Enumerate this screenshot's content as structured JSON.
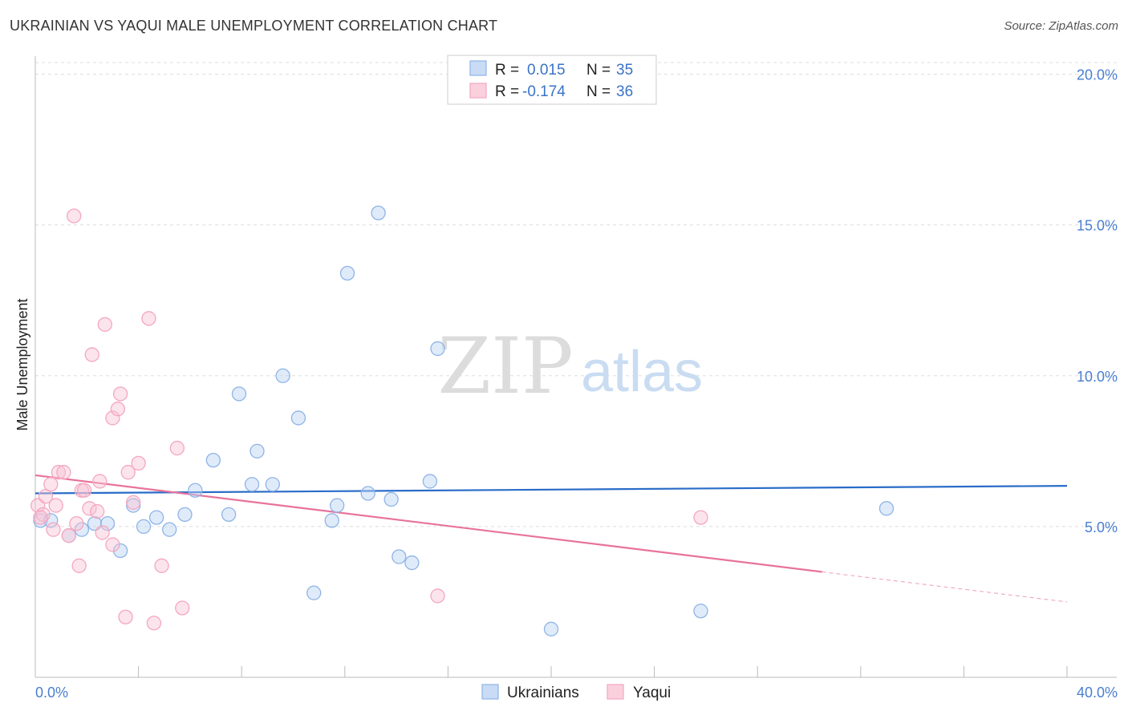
{
  "title": "UKRAINIAN VS YAQUI MALE UNEMPLOYMENT CORRELATION CHART",
  "source": "Source: ZipAtlas.com",
  "watermark": {
    "zip": "ZIP",
    "atlas": "atlas"
  },
  "chart_data": {
    "type": "scatter",
    "title": "UKRAINIAN VS YAQUI MALE UNEMPLOYMENT CORRELATION CHART",
    "xlabel": "",
    "ylabel": "Male Unemployment",
    "xlim": [
      0,
      40
    ],
    "ylim": [
      0,
      20.6
    ],
    "x_tick_labels": [
      "0.0%",
      "40.0%"
    ],
    "y_ticks": [
      5,
      10,
      15,
      20
    ],
    "y_tick_labels": [
      "5.0%",
      "10.0%",
      "15.0%",
      "20.0%"
    ],
    "grid": true,
    "legend_top": [
      {
        "r_label": "R =",
        "r_value": "0.015",
        "n_label": "N =",
        "n_value": "35"
      },
      {
        "r_label": "R =",
        "r_value": "-0.174",
        "n_label": "N =",
        "n_value": "36"
      }
    ],
    "series": [
      {
        "name": "Ukrainians",
        "color": "#8fb4e6",
        "line_color": "#2a6cc8",
        "trend": {
          "x0": 0,
          "y0": 6.1,
          "x1": 40,
          "y1": 6.35,
          "solid_until": 40
        },
        "points": [
          [
            0.2,
            5.2
          ],
          [
            0.6,
            5.2
          ],
          [
            1.3,
            4.7
          ],
          [
            1.8,
            4.9
          ],
          [
            2.3,
            5.1
          ],
          [
            2.8,
            5.1
          ],
          [
            3.3,
            4.2
          ],
          [
            3.8,
            5.7
          ],
          [
            4.2,
            5.0
          ],
          [
            4.7,
            5.3
          ],
          [
            5.2,
            4.9
          ],
          [
            5.8,
            5.4
          ],
          [
            6.2,
            6.2
          ],
          [
            6.9,
            7.2
          ],
          [
            7.5,
            5.4
          ],
          [
            7.9,
            9.4
          ],
          [
            8.4,
            6.4
          ],
          [
            8.6,
            7.5
          ],
          [
            9.2,
            6.4
          ],
          [
            9.6,
            10.0
          ],
          [
            10.2,
            8.6
          ],
          [
            10.8,
            2.8
          ],
          [
            11.5,
            5.2
          ],
          [
            11.7,
            5.7
          ],
          [
            12.1,
            13.4
          ],
          [
            12.9,
            6.1
          ],
          [
            13.3,
            15.4
          ],
          [
            13.8,
            5.9
          ],
          [
            14.1,
            4.0
          ],
          [
            14.6,
            3.8
          ],
          [
            15.3,
            6.5
          ],
          [
            15.6,
            10.9
          ],
          [
            20.0,
            1.6
          ],
          [
            25.8,
            2.2
          ],
          [
            33.0,
            5.6
          ]
        ]
      },
      {
        "name": "Yaqui",
        "color": "#f4a7c0",
        "line_color": "#e8729c",
        "trend": {
          "x0": 0,
          "y0": 6.7,
          "x1": 40,
          "y1": 2.5,
          "solid_until": 30.5
        },
        "points": [
          [
            0.1,
            5.7
          ],
          [
            0.3,
            5.4
          ],
          [
            0.4,
            6.0
          ],
          [
            0.6,
            6.4
          ],
          [
            0.7,
            4.9
          ],
          [
            0.8,
            5.7
          ],
          [
            0.9,
            6.8
          ],
          [
            1.1,
            6.8
          ],
          [
            1.3,
            4.7
          ],
          [
            1.6,
            5.1
          ],
          [
            1.5,
            15.3
          ],
          [
            1.7,
            3.7
          ],
          [
            1.8,
            6.2
          ],
          [
            1.9,
            6.2
          ],
          [
            2.1,
            5.6
          ],
          [
            2.2,
            10.7
          ],
          [
            2.4,
            5.5
          ],
          [
            2.5,
            6.5
          ],
          [
            2.6,
            4.8
          ],
          [
            2.7,
            11.7
          ],
          [
            3.0,
            4.4
          ],
          [
            3.0,
            8.6
          ],
          [
            3.2,
            8.9
          ],
          [
            3.3,
            9.4
          ],
          [
            3.5,
            2.0
          ],
          [
            3.6,
            6.8
          ],
          [
            3.8,
            5.8
          ],
          [
            4.0,
            7.1
          ],
          [
            4.4,
            11.9
          ],
          [
            4.6,
            1.8
          ],
          [
            4.9,
            3.7
          ],
          [
            5.5,
            7.6
          ],
          [
            5.7,
            2.3
          ],
          [
            15.6,
            2.7
          ],
          [
            25.8,
            5.3
          ],
          [
            0.2,
            5.3
          ]
        ]
      }
    ]
  },
  "bottom_legend": [
    {
      "label": "Ukrainians"
    },
    {
      "label": "Yaqui"
    }
  ]
}
